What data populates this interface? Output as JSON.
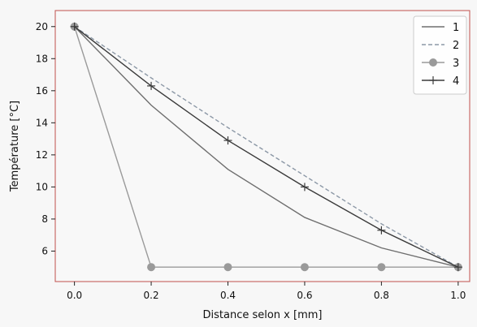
{
  "chart_data": {
    "type": "line",
    "xlabel": "Distance selon x [mm]",
    "ylabel": "Température [°C]",
    "xlim": [
      -0.05,
      1.03
    ],
    "ylim": [
      4.1,
      21.0
    ],
    "xticks": [
      0.0,
      0.2,
      0.4,
      0.6,
      0.8,
      1.0
    ],
    "yticks": [
      6,
      8,
      10,
      12,
      14,
      16,
      18,
      20
    ],
    "xtick_labels": [
      "0.0",
      "0.2",
      "0.4",
      "0.6",
      "0.8",
      "1.0"
    ],
    "ytick_labels": [
      "6",
      "8",
      "10",
      "12",
      "14",
      "16",
      "18",
      "20"
    ],
    "grid": false,
    "legend_position": "top-right",
    "series": [
      {
        "name": "1",
        "x": [
          0.0,
          0.2,
          0.4,
          0.6,
          0.8,
          1.0
        ],
        "y": [
          20.0,
          15.1,
          11.1,
          8.1,
          6.2,
          5.0
        ],
        "color": "#6e6e6e",
        "dash": "solid",
        "marker": "none"
      },
      {
        "name": "2",
        "x": [
          0.0,
          0.2,
          0.4,
          0.6,
          0.8,
          1.0
        ],
        "y": [
          20.0,
          16.8,
          13.7,
          10.7,
          7.7,
          5.0
        ],
        "color": "#8c98a6",
        "dash": "dashed",
        "marker": "none"
      },
      {
        "name": "3",
        "x": [
          0.0,
          0.2,
          0.4,
          0.6,
          0.8,
          1.0
        ],
        "y": [
          20.0,
          5.0,
          5.0,
          5.0,
          5.0,
          5.0
        ],
        "color": "#9a9a9a",
        "dash": "solid",
        "marker": "circle"
      },
      {
        "name": "4",
        "x": [
          0.0,
          0.2,
          0.4,
          0.6,
          0.8,
          1.0
        ],
        "y": [
          20.0,
          16.3,
          12.9,
          10.0,
          7.3,
          5.0
        ],
        "color": "#3a3a3a",
        "dash": "solid",
        "marker": "plus"
      }
    ]
  }
}
